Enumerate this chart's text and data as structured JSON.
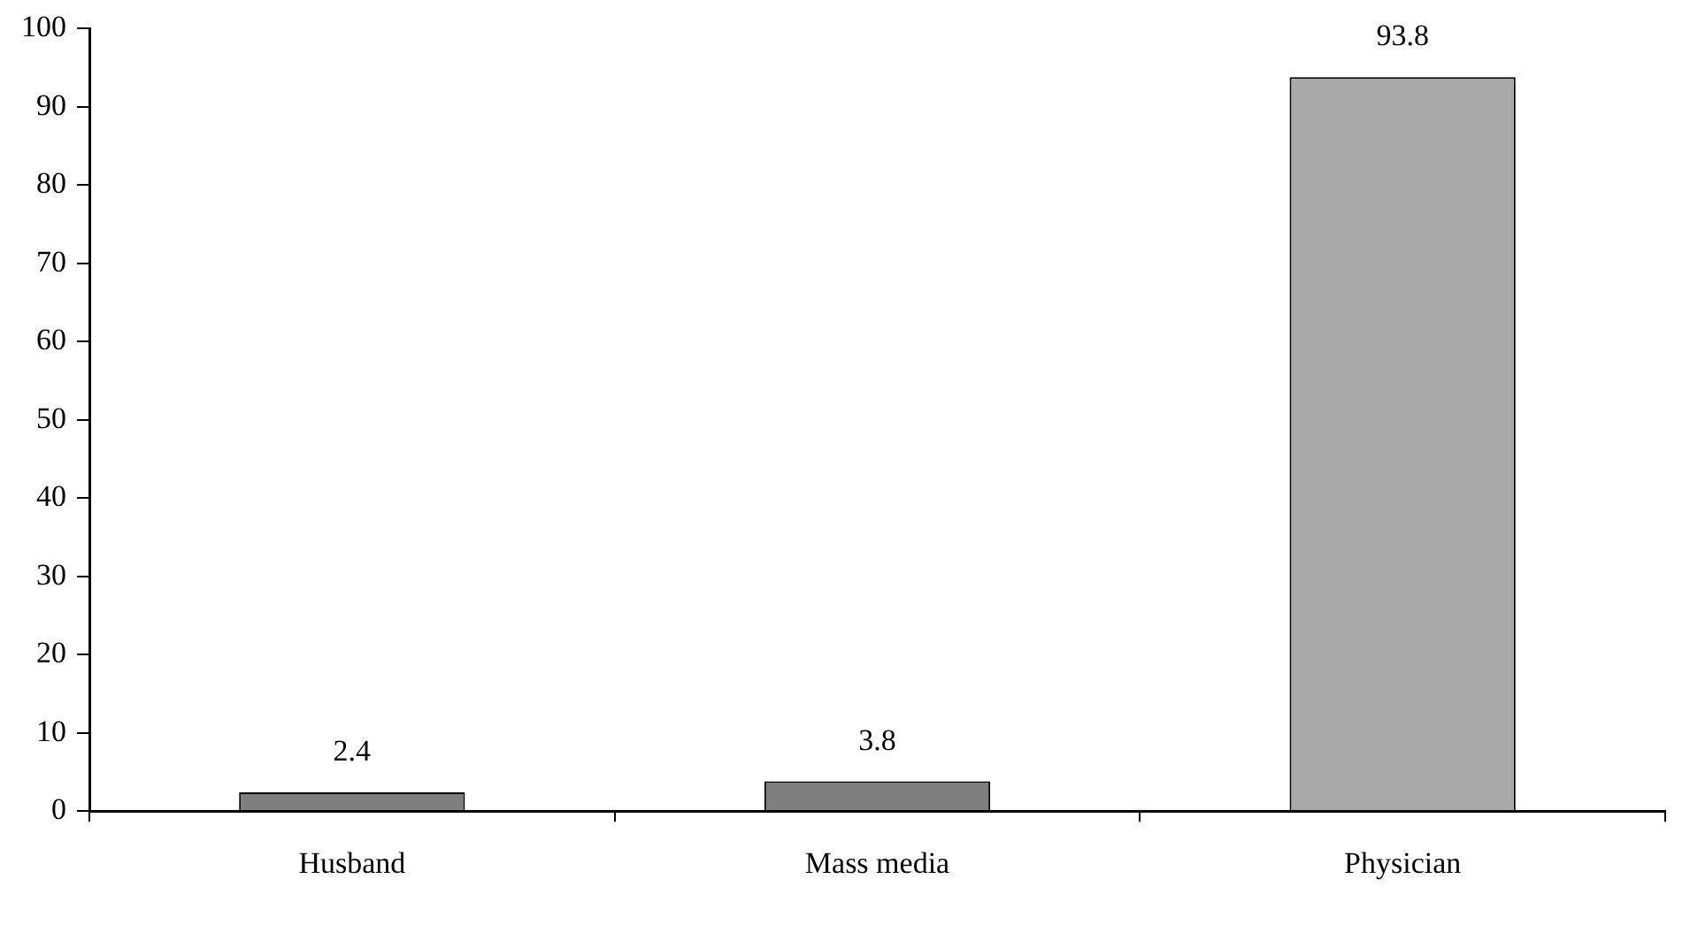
{
  "chart_data": {
    "type": "bar",
    "categories": [
      "Husband",
      "Mass media",
      "Physician"
    ],
    "values": [
      2.4,
      3.8,
      93.8
    ],
    "colors": [
      "#7f7f7f",
      "#7f7f7f",
      "#a9a9a9"
    ],
    "ylim": [
      0,
      100
    ],
    "yticks": [
      0,
      10,
      20,
      30,
      40,
      50,
      60,
      70,
      80,
      90,
      100
    ],
    "grid": false,
    "legend": false,
    "data_labels": true
  }
}
